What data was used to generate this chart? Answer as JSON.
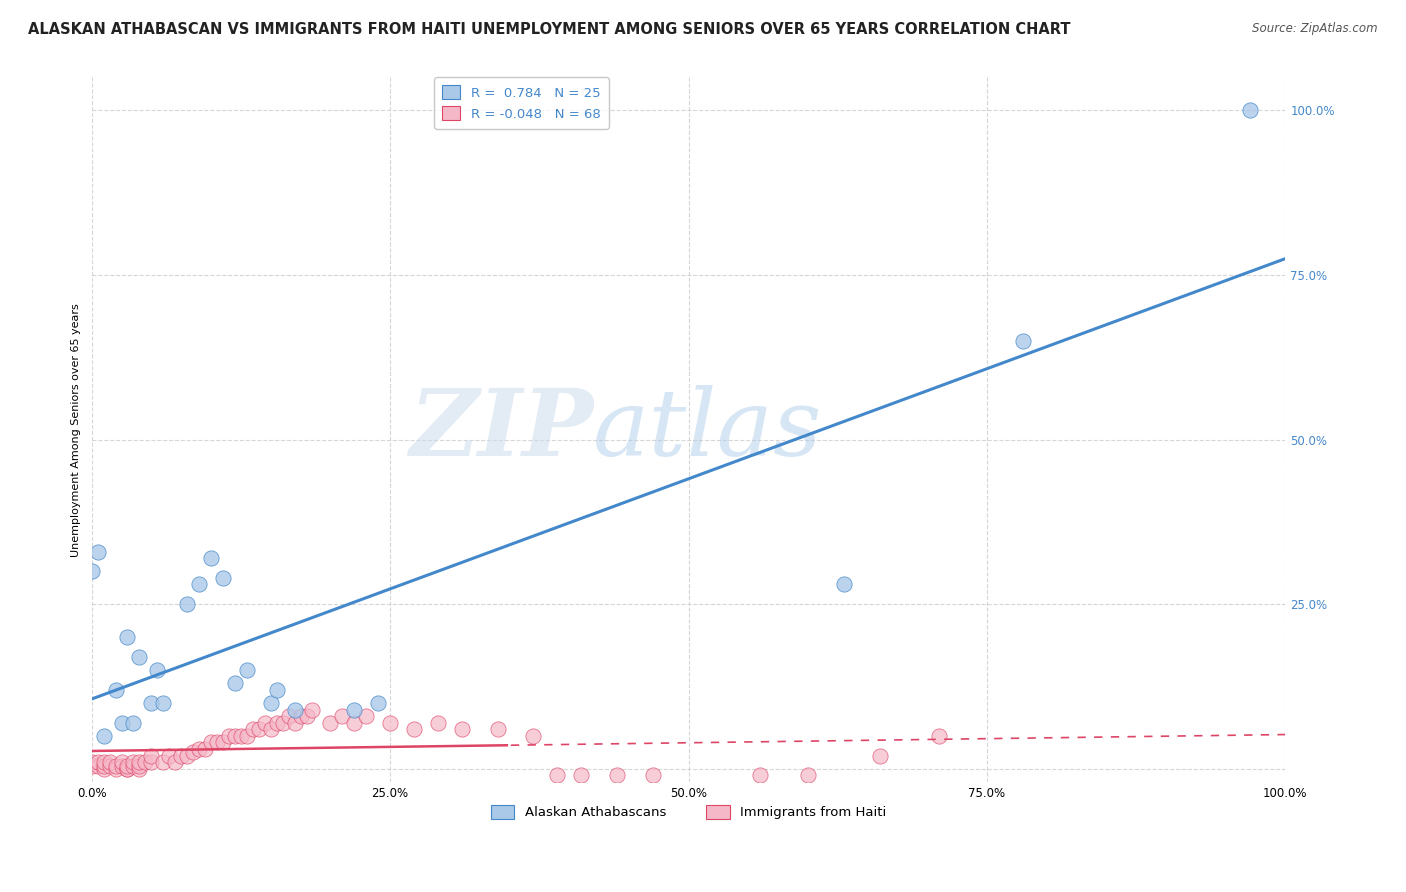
{
  "title": "ALASKAN ATHABASCAN VS IMMIGRANTS FROM HAITI UNEMPLOYMENT AMONG SENIORS OVER 65 YEARS CORRELATION CHART",
  "source": "Source: ZipAtlas.com",
  "ylabel": "Unemployment Among Seniors over 65 years",
  "xlim": [
    0,
    1.0
  ],
  "ylim": [
    -0.02,
    1.05
  ],
  "xtick_labels": [
    "0.0%",
    "25.0%",
    "50.0%",
    "75.0%",
    "100.0%"
  ],
  "xtick_vals": [
    0,
    0.25,
    0.5,
    0.75,
    1.0
  ],
  "right_ytick_labels": [
    "100.0%",
    "75.0%",
    "50.0%",
    "25.0%"
  ],
  "right_ytick_vals": [
    1.0,
    0.75,
    0.5,
    0.25
  ],
  "watermark_zip": "ZIP",
  "watermark_atlas": "atlas",
  "background_color": "#ffffff",
  "plot_bg_color": "#ffffff",
  "grid_color": "#cccccc",
  "blue_scatter_x": [
    0.0,
    0.005,
    0.01,
    0.02,
    0.025,
    0.03,
    0.035,
    0.04,
    0.05,
    0.055,
    0.06,
    0.08,
    0.09,
    0.1,
    0.11,
    0.12,
    0.13,
    0.15,
    0.155,
    0.17,
    0.22,
    0.24,
    0.63,
    0.78,
    0.97
  ],
  "blue_scatter_y": [
    0.3,
    0.33,
    0.05,
    0.12,
    0.07,
    0.2,
    0.07,
    0.17,
    0.1,
    0.15,
    0.1,
    0.25,
    0.28,
    0.32,
    0.29,
    0.13,
    0.15,
    0.1,
    0.12,
    0.09,
    0.09,
    0.1,
    0.28,
    0.65,
    1.0
  ],
  "pink_scatter_x": [
    0.0,
    0.0,
    0.005,
    0.005,
    0.01,
    0.01,
    0.01,
    0.015,
    0.015,
    0.02,
    0.02,
    0.025,
    0.025,
    0.03,
    0.03,
    0.03,
    0.035,
    0.035,
    0.04,
    0.04,
    0.04,
    0.045,
    0.05,
    0.05,
    0.06,
    0.065,
    0.07,
    0.075,
    0.08,
    0.085,
    0.09,
    0.095,
    0.1,
    0.105,
    0.11,
    0.115,
    0.12,
    0.125,
    0.13,
    0.135,
    0.14,
    0.145,
    0.15,
    0.155,
    0.16,
    0.165,
    0.17,
    0.175,
    0.18,
    0.185,
    0.2,
    0.21,
    0.22,
    0.23,
    0.25,
    0.27,
    0.29,
    0.31,
    0.34,
    0.37,
    0.39,
    0.41,
    0.44,
    0.47,
    0.56,
    0.6,
    0.66,
    0.71
  ],
  "pink_scatter_y": [
    0.005,
    0.01,
    0.005,
    0.01,
    0.0,
    0.005,
    0.01,
    0.005,
    0.01,
    0.0,
    0.005,
    0.005,
    0.01,
    0.0,
    0.0,
    0.005,
    0.005,
    0.01,
    0.0,
    0.005,
    0.01,
    0.01,
    0.01,
    0.02,
    0.01,
    0.02,
    0.01,
    0.02,
    0.02,
    0.025,
    0.03,
    0.03,
    0.04,
    0.04,
    0.04,
    0.05,
    0.05,
    0.05,
    0.05,
    0.06,
    0.06,
    0.07,
    0.06,
    0.07,
    0.07,
    0.08,
    0.07,
    0.08,
    0.08,
    0.09,
    0.07,
    0.08,
    0.07,
    0.08,
    0.07,
    0.06,
    0.07,
    0.06,
    0.06,
    0.05,
    -0.01,
    -0.01,
    -0.01,
    -0.01,
    -0.01,
    -0.01,
    0.02,
    0.05
  ],
  "blue_color": "#aac8e8",
  "pink_color": "#f5b8c8",
  "blue_line_color": "#4488cc",
  "pink_line_color": "#dd4466",
  "blue_R": 0.784,
  "blue_N": 25,
  "pink_R": -0.048,
  "pink_N": 68,
  "legend_label_blue": "Alaskan Athabascans",
  "legend_label_pink": "Immigrants from Haiti",
  "title_fontsize": 10.5,
  "source_fontsize": 8.5,
  "ylabel_fontsize": 8,
  "tick_fontsize": 8.5,
  "legend_fontsize": 9.5
}
